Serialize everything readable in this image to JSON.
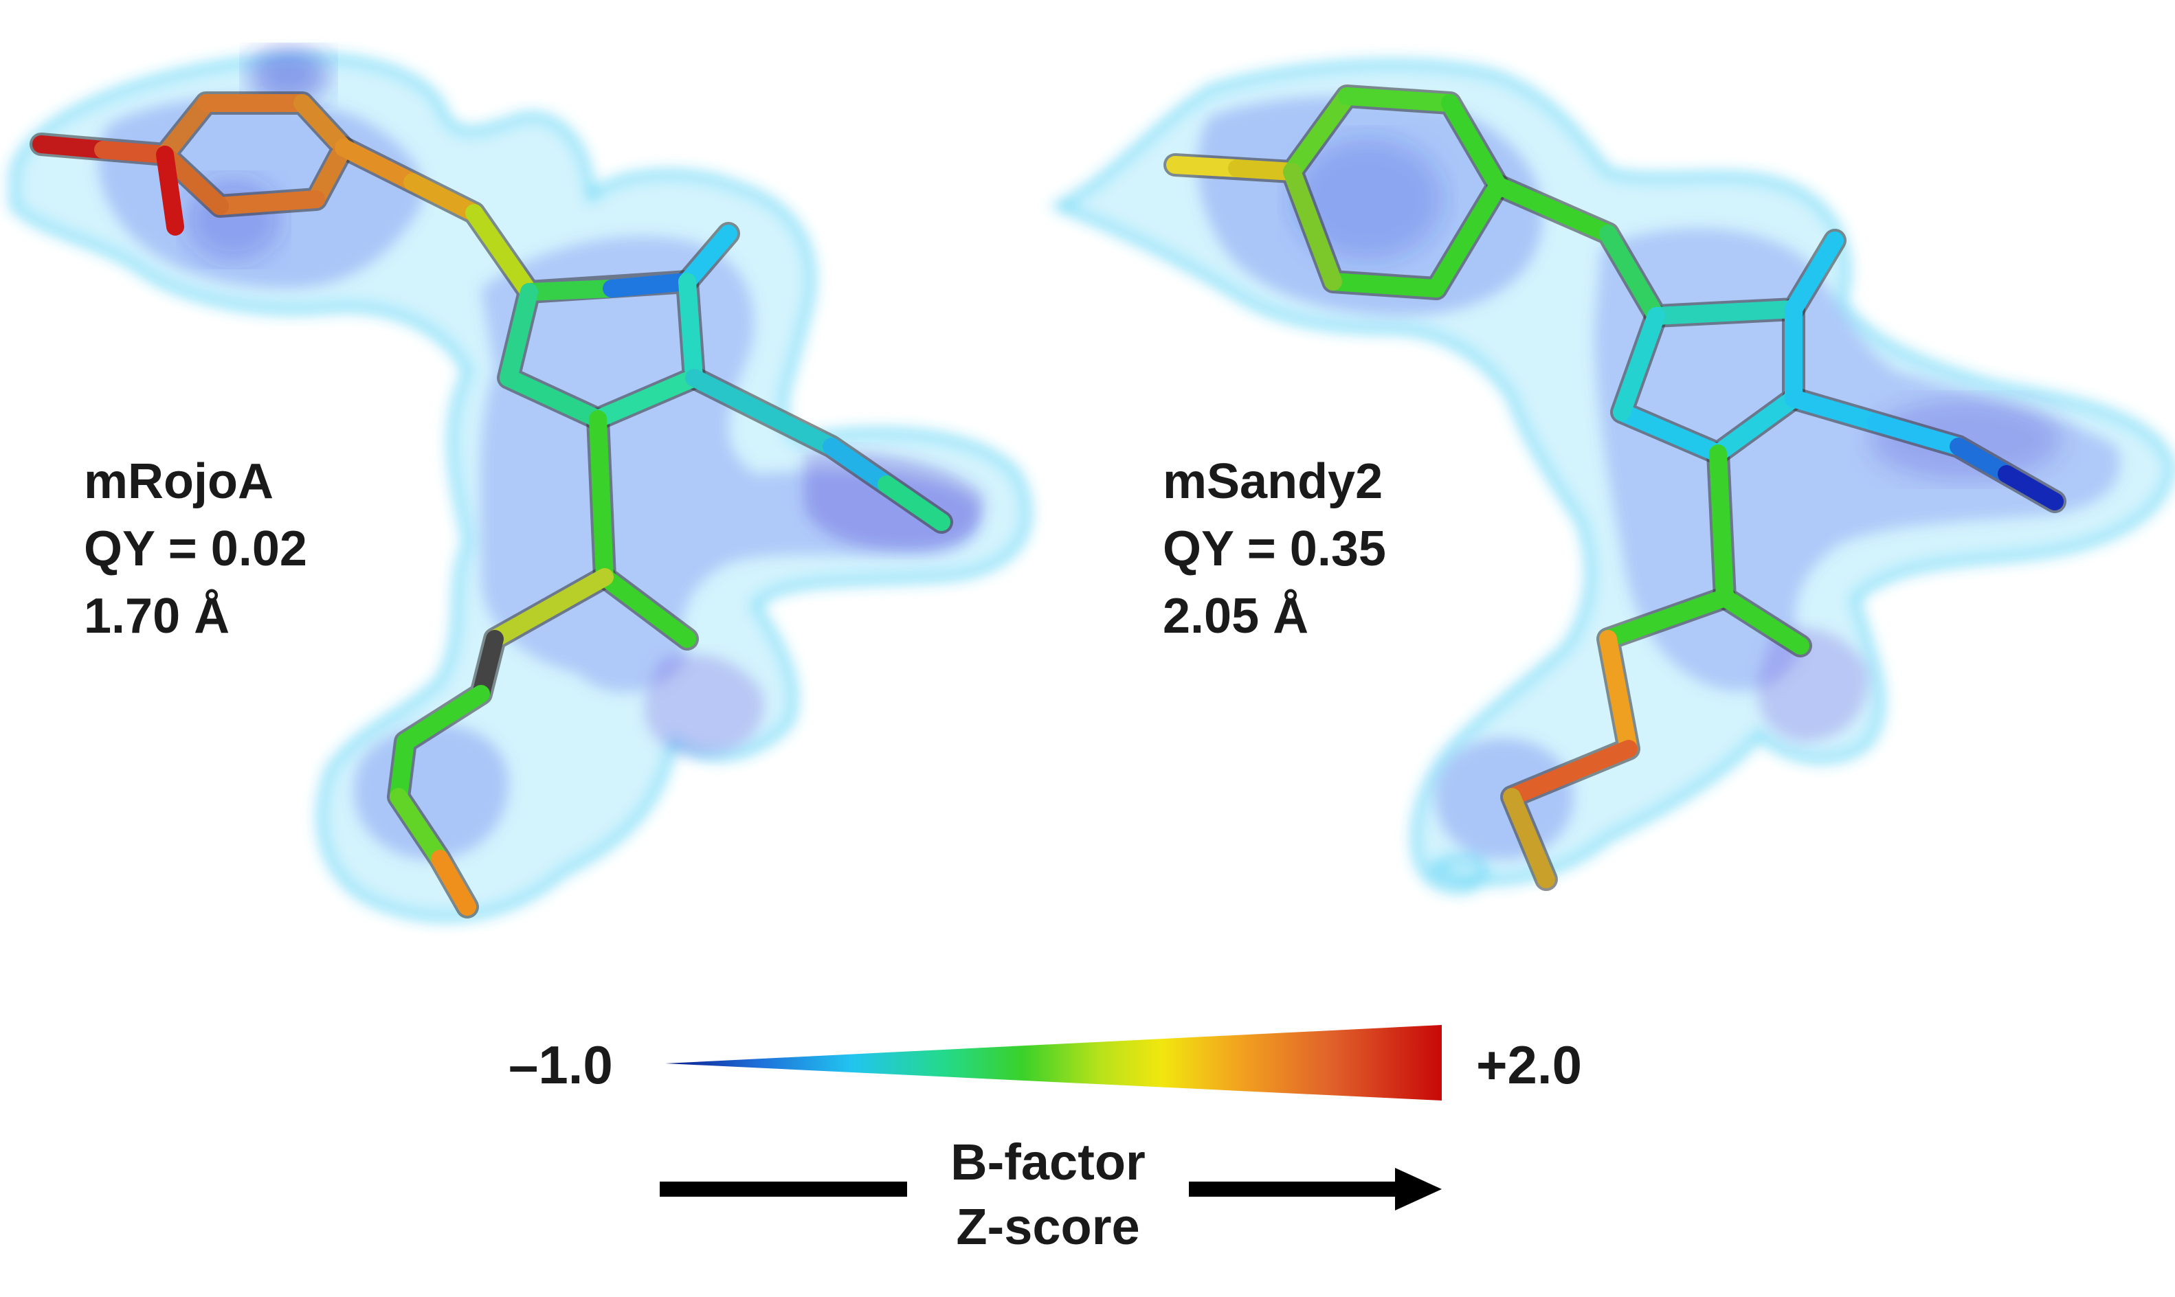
{
  "panels": [
    {
      "name": "mRojoA",
      "qy": "QY = 0.02",
      "resolution": "1.70 Å"
    },
    {
      "name": "mSandy2",
      "qy": "QY = 0.35",
      "resolution": "2.05 Å"
    }
  ],
  "scale": {
    "min_label": "–1.0",
    "max_label": "+2.0",
    "min_value": -1.0,
    "max_value": 2.0,
    "gradient_colors": [
      "#0a1a8c",
      "#1e6fd9",
      "#22c4f0",
      "#24d98a",
      "#3ad12a",
      "#b8e21a",
      "#f2e60f",
      "#f2a21f",
      "#e0602a",
      "#c80808"
    ],
    "axis_title_line1": "B-factor",
    "axis_title_line2": "Z-score"
  },
  "colors": {
    "density_mesh": "#33c8f5",
    "density_inner": "#5f74ee",
    "density_core": "#2a32d4",
    "text": "#1a1a1a"
  }
}
